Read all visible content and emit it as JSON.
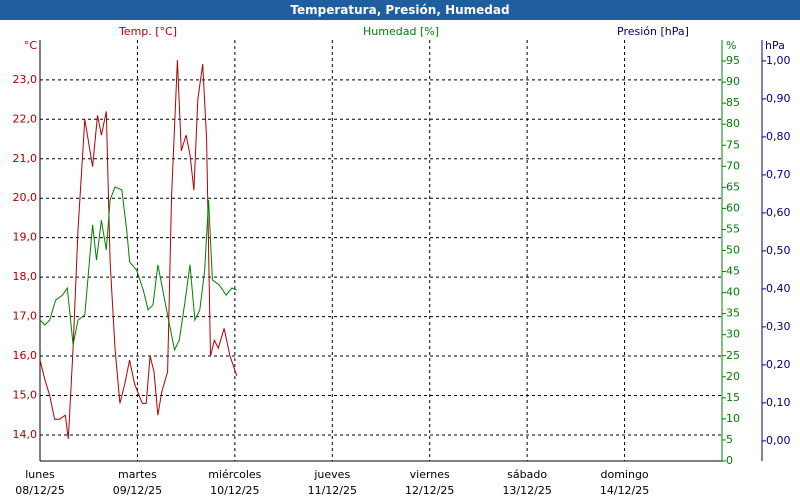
{
  "chart_data": {
    "type": "line",
    "title": "Temperatura, Presión, Humedad",
    "xlim": [
      0,
      7
    ],
    "xticks": [
      {
        "value": 0,
        "label": "lunes",
        "date": "08/12/25"
      },
      {
        "value": 1,
        "label": "martes",
        "date": "09/12/25"
      },
      {
        "value": 2,
        "label": "miércoles",
        "date": "10/12/25"
      },
      {
        "value": 3,
        "label": "jueves",
        "date": "11/12/25"
      },
      {
        "value": 4,
        "label": "viernes",
        "date": "12/12/25"
      },
      {
        "value": 5,
        "label": "sábado",
        "date": "13/12/25"
      },
      {
        "value": 6,
        "label": "domingo",
        "date": "14/12/25"
      }
    ],
    "ylabel": "Temp. [°C]",
    "yunit": "°C",
    "ycolor": "#b00000",
    "ylim": [
      13.34,
      24.01
    ],
    "yticks": [
      {
        "value": 14,
        "label": "14,0"
      },
      {
        "value": 15,
        "label": "15,0"
      },
      {
        "value": 16,
        "label": "16,0"
      },
      {
        "value": 17,
        "label": "17,0"
      },
      {
        "value": 18,
        "label": "18,0"
      },
      {
        "value": 19,
        "label": "19,0"
      },
      {
        "value": 20,
        "label": "20,0"
      },
      {
        "value": 21,
        "label": "21,0"
      },
      {
        "value": 22,
        "label": "22,0"
      },
      {
        "value": 23,
        "label": "23,0"
      }
    ],
    "y2label": "Humedad [%]",
    "y2unit": "%",
    "y2color": "#008000",
    "y2lim": [
      0,
      100
    ],
    "y2ticks": [
      0,
      5,
      10,
      15,
      20,
      25,
      30,
      35,
      40,
      45,
      50,
      55,
      60,
      65,
      70,
      75,
      80,
      85,
      90,
      95
    ],
    "y3label": "Presión [hPa]",
    "y3unit": "hPa",
    "y3color": "#000080",
    "y3lim": [
      -0.053,
      1.055
    ],
    "y3ticks": [
      {
        "value": 0,
        "label": "0,00"
      },
      {
        "value": 0.1,
        "label": "0,10"
      },
      {
        "value": 0.2,
        "label": "0,20"
      },
      {
        "value": 0.3,
        "label": "0,30"
      },
      {
        "value": 0.4,
        "label": "0,40"
      },
      {
        "value": 0.5,
        "label": "0,50"
      },
      {
        "value": 0.6,
        "label": "0,60"
      },
      {
        "value": 0.7,
        "label": "0,70"
      },
      {
        "value": 0.8,
        "label": "0,80"
      },
      {
        "value": 0.9,
        "label": "0,90"
      },
      {
        "value": 1,
        "label": "1,00"
      }
    ],
    "grid": true,
    "series": [
      {
        "color": "#b00000",
        "axis": "y",
        "x": [
          0,
          0.05,
          0.1,
          0.15,
          0.2,
          0.26,
          0.29,
          0.34,
          0.39,
          0.46,
          0.54,
          0.59,
          0.63,
          0.68,
          0.72,
          0.77,
          0.82,
          0.87,
          0.92,
          0.97,
          1.05,
          1.09,
          1.13,
          1.17,
          1.21,
          1.25,
          1.31,
          1.35,
          1.41,
          1.45,
          1.5,
          1.54,
          1.58,
          1.62,
          1.67,
          1.71,
          1.75,
          1.79,
          1.83,
          1.89,
          1.95,
          2.02
        ],
        "values": [
          15.9,
          15.4,
          15.0,
          14.4,
          14.4,
          14.5,
          13.9,
          16.2,
          19.2,
          22.0,
          20.8,
          22.1,
          21.6,
          22.2,
          18.4,
          16.2,
          14.8,
          15.3,
          15.9,
          15.3,
          14.8,
          14.8,
          16.0,
          15.6,
          14.5,
          15.1,
          15.6,
          20.0,
          23.5,
          21.2,
          21.6,
          21.1,
          20.2,
          22.5,
          23.4,
          21.5,
          16.0,
          16.4,
          16.2,
          16.7,
          16.0,
          15.5
        ]
      },
      {
        "color": "#008000",
        "axis": "y2",
        "x": [
          0,
          0.05,
          0.1,
          0.16,
          0.23,
          0.28,
          0.34,
          0.39,
          0.46,
          0.54,
          0.58,
          0.63,
          0.68,
          0.72,
          0.77,
          0.84,
          0.89,
          0.92,
          0.99,
          1.06,
          1.11,
          1.16,
          1.21,
          1.28,
          1.33,
          1.38,
          1.43,
          1.49,
          1.54,
          1.59,
          1.64,
          1.69,
          1.73,
          1.77,
          1.84,
          1.91,
          1.97,
          2.02
        ],
        "values": [
          33.5,
          32.3,
          33.5,
          38.2,
          39.4,
          41.1,
          27.6,
          33.5,
          34.7,
          56.1,
          47.7,
          57.2,
          50.1,
          62.0,
          65.1,
          64.4,
          54.9,
          47.3,
          45.4,
          40.6,
          35.9,
          37.1,
          46.6,
          38.2,
          32.3,
          26.4,
          28.7,
          38.2,
          46.6,
          33.5,
          35.9,
          45.4,
          62.0,
          43.0,
          41.8,
          39.4,
          41.1,
          40.6
        ]
      }
    ]
  }
}
